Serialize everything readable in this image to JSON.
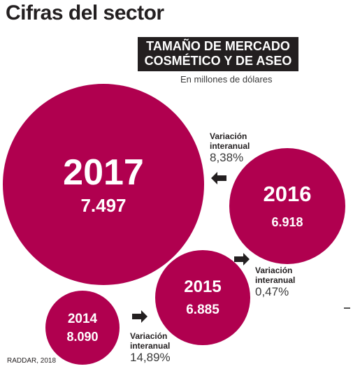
{
  "page": {
    "title": "Cifras del sector",
    "source": "RADDAR, 2018"
  },
  "chart_data": {
    "type": "bubble",
    "title_line1": "TAMAÑO DE MERCADO",
    "title_line2": "COSMÉTICO Y DE ASEO",
    "subtitle": "En millones de dólares",
    "bubble_color": "#b0004f",
    "series": [
      {
        "year": "2017",
        "value_label": "7.497",
        "value": 7497
      },
      {
        "year": "2016",
        "value_label": "6.918",
        "value": 6918
      },
      {
        "year": "2015",
        "value_label": "6.885",
        "value": 6885
      },
      {
        "year": "2014",
        "value_label": "8.090",
        "value": 8090
      }
    ],
    "variations": [
      {
        "label_line1": "Variación",
        "label_line2": "interanual",
        "pct": "8,38%"
      },
      {
        "label_line1": "Variación",
        "label_line2": "interanual",
        "pct": "0,47%"
      },
      {
        "label_line1": "Variación",
        "label_line2": "interanual",
        "pct": "14,89%"
      }
    ]
  }
}
